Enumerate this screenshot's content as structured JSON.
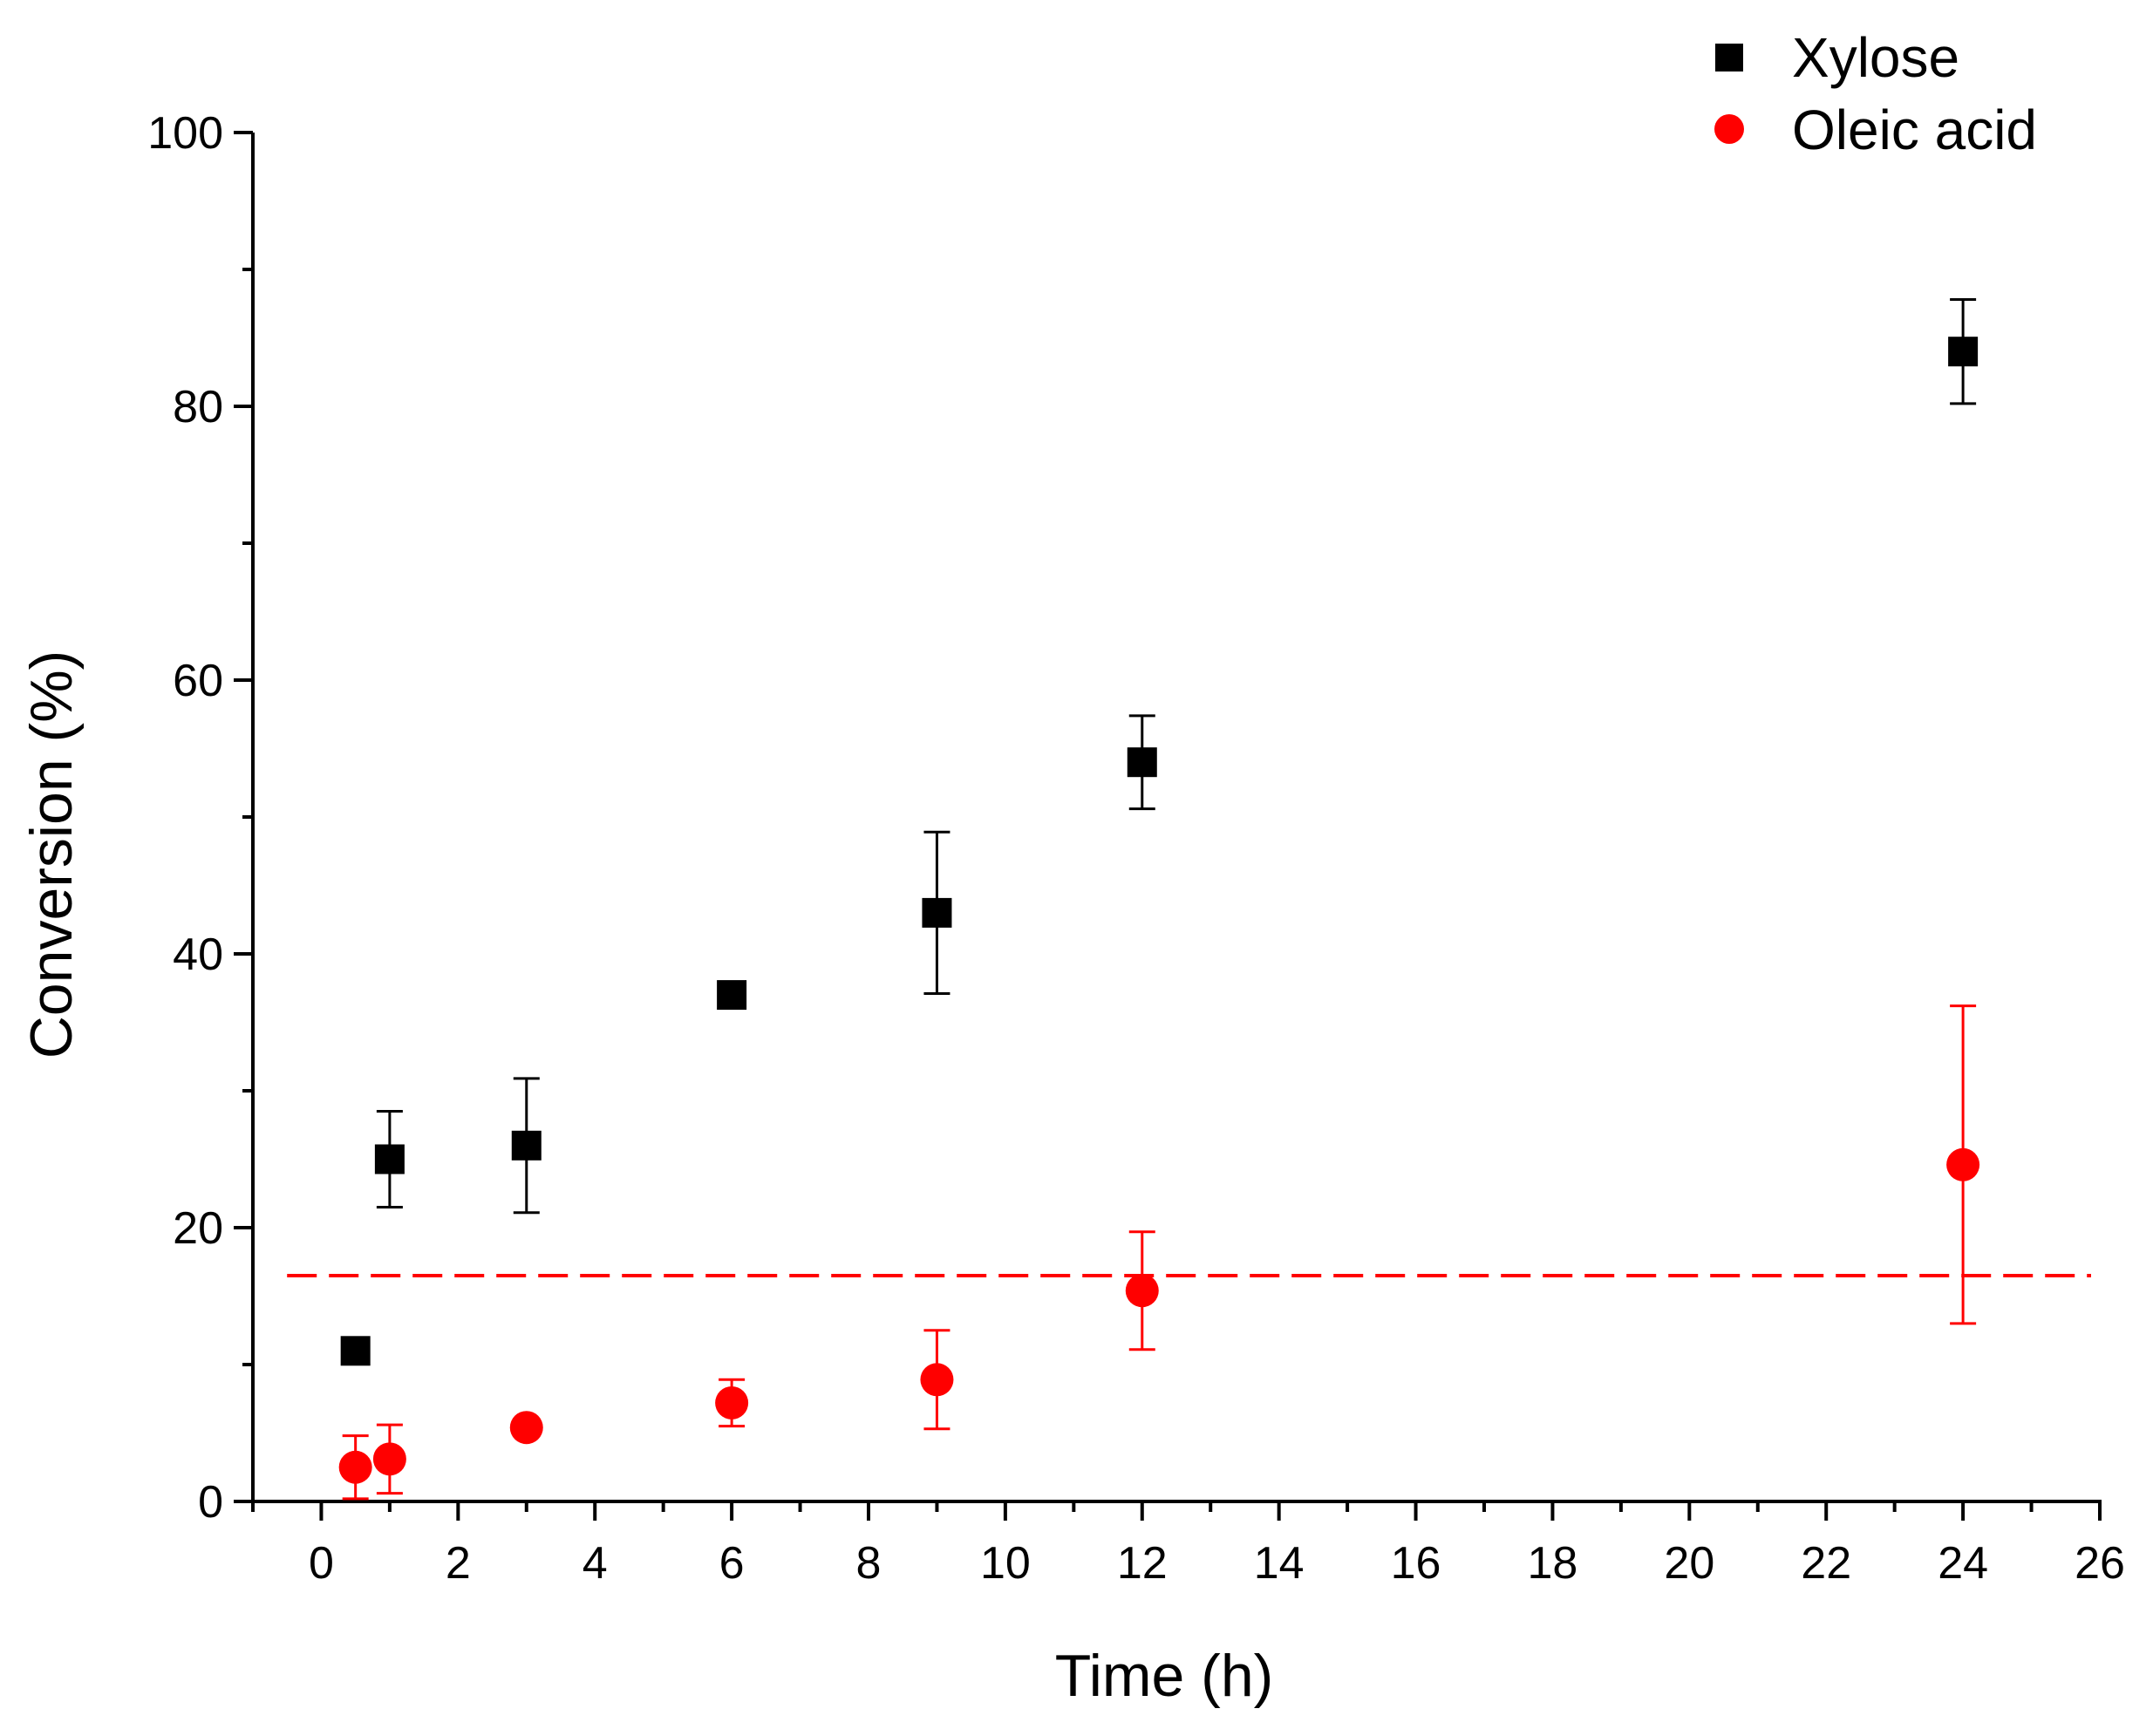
{
  "chart_data": {
    "type": "scatter",
    "xlabel": "Time (h)",
    "ylabel": "Conversion (%)",
    "xlim": [
      -1,
      26
    ],
    "ylim": [
      0,
      100
    ],
    "x_ticks": [
      0,
      2,
      4,
      6,
      8,
      10,
      12,
      14,
      16,
      18,
      20,
      22,
      24,
      26
    ],
    "y_ticks": [
      0,
      20,
      40,
      60,
      80,
      100
    ],
    "legend_position": "top-right",
    "series": [
      {
        "name": "Xylose",
        "marker": "square",
        "color": "#000000",
        "points": [
          {
            "x": 0.5,
            "y": 11,
            "err": null
          },
          {
            "x": 1,
            "y": 25,
            "err": 3.5
          },
          {
            "x": 3,
            "y": 26,
            "err": 4.9
          },
          {
            "x": 6,
            "y": 37,
            "err": null
          },
          {
            "x": 9,
            "y": 43,
            "err": 5.9
          },
          {
            "x": 12,
            "y": 54,
            "err": 3.4
          },
          {
            "x": 24,
            "y": 84,
            "err": 3.8
          }
        ]
      },
      {
        "name": "Oleic acid",
        "marker": "circle",
        "color": "#ff0000",
        "points": [
          {
            "x": 0.5,
            "y": 2.5,
            "err": 2.3
          },
          {
            "x": 1,
            "y": 3.1,
            "err": 2.5
          },
          {
            "x": 3,
            "y": 5.4,
            "err": null
          },
          {
            "x": 6,
            "y": 7.2,
            "err": 1.7
          },
          {
            "x": 9,
            "y": 8.9,
            "err": 3.6
          },
          {
            "x": 12,
            "y": 15.4,
            "err": 4.3
          },
          {
            "x": 24,
            "y": 24.6,
            "err": 11.6
          }
        ]
      }
    ],
    "reference_line": {
      "y": 16.5,
      "color": "#ff0000",
      "style": "dashed"
    }
  }
}
